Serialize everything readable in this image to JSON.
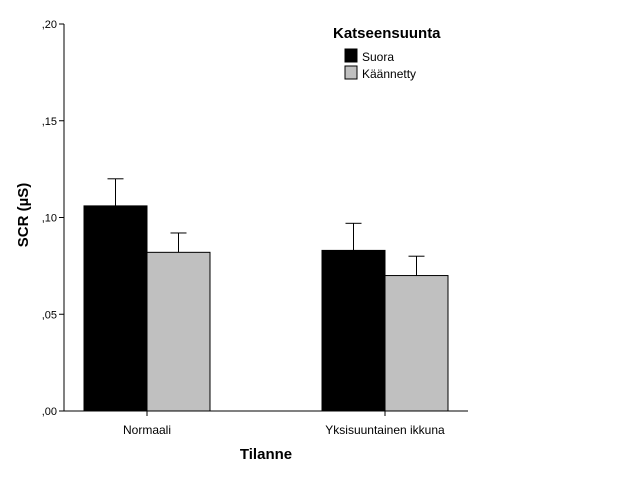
{
  "chart_data": {
    "type": "bar",
    "title": "",
    "xlabel": "Tilanne",
    "ylabel": "SCR (µS)",
    "categories": [
      "Normaali",
      "Yksisuuntainen ikkuna"
    ],
    "series": [
      {
        "name": "Suora",
        "color": "#000000",
        "values": [
          0.106,
          0.083
        ],
        "error_upper": [
          0.12,
          0.097
        ]
      },
      {
        "name": "Käännetty",
        "color": "#c0c0c0",
        "values": [
          0.082,
          0.07
        ],
        "error_upper": [
          0.092,
          0.08
        ]
      }
    ],
    "ylim": [
      0,
      0.2
    ],
    "yticks": [
      {
        "value": 0.0,
        "label": ",00"
      },
      {
        "value": 0.05,
        "label": ",05"
      },
      {
        "value": 0.1,
        "label": ",10"
      },
      {
        "value": 0.15,
        "label": ",15"
      },
      {
        "value": 0.2,
        "label": ",20"
      }
    ],
    "legend": {
      "title": "Katseensuunta",
      "position": "top-right"
    },
    "grid": false
  }
}
